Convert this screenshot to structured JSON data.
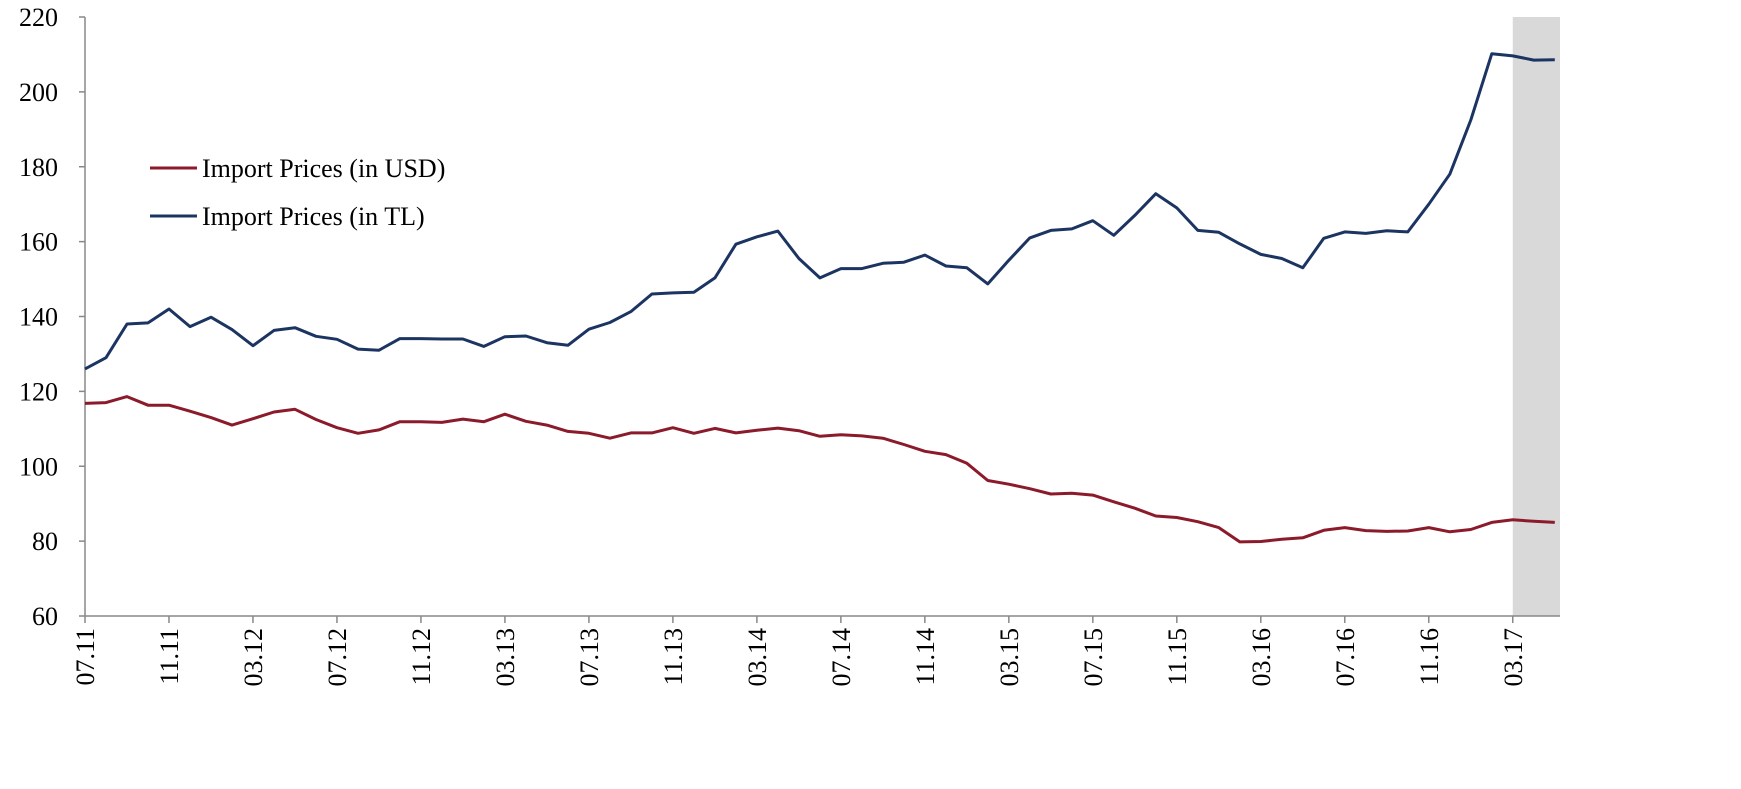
{
  "chart_data": {
    "type": "line",
    "categories": [
      "07.11",
      null,
      null,
      null,
      "11.11",
      null,
      null,
      null,
      "03.12",
      null,
      null,
      null,
      "07.12",
      null,
      null,
      null,
      "11.12",
      null,
      null,
      null,
      "03.13",
      null,
      null,
      null,
      "07.13",
      null,
      null,
      null,
      "11.13",
      null,
      null,
      null,
      "03.14",
      null,
      null,
      null,
      "07.14",
      null,
      null,
      null,
      "11.14",
      null,
      null,
      null,
      "03.15",
      null,
      null,
      null,
      "07.15",
      null,
      null,
      null,
      "11.15",
      null,
      null,
      null,
      "03.16",
      null,
      null,
      null,
      "07.16",
      null,
      null,
      null,
      "11.16",
      null,
      null,
      null,
      "03.17",
      null,
      null
    ],
    "series": [
      {
        "name": "Import Prices (in USD)",
        "color": "#8b1a2b",
        "values": [
          116.8,
          117,
          118.6,
          116.3,
          116.3,
          114.7,
          113,
          111,
          112.7,
          114.5,
          115.2,
          112.5,
          110.3,
          108.8,
          109.7,
          111.9,
          111.9,
          111.7,
          112.6,
          111.9,
          113.9,
          112,
          111,
          109.3,
          108.8,
          107.5,
          108.9,
          108.9,
          110.3,
          108.8,
          110.1,
          108.9,
          109.6,
          110.2,
          109.5,
          108,
          108.4,
          108.1,
          107.5,
          105.8,
          104,
          103.1,
          100.8,
          96.2,
          95.2,
          94,
          92.6,
          92.8,
          92.3,
          90.5,
          88.8,
          86.7,
          86.3,
          85.2,
          83.6,
          79.8,
          79.9,
          80.5,
          80.9,
          82.9,
          83.6,
          82.8,
          82.6,
          82.7,
          83.6,
          82.5,
          83.1,
          85,
          85.7,
          85.3,
          85
        ]
      },
      {
        "name": "Import Prices (in TL)",
        "color": "#1c3461",
        "values": [
          126,
          129,
          138,
          138.3,
          142,
          137.3,
          139.8,
          136.5,
          132.2,
          136.3,
          137,
          134.7,
          133.9,
          131.3,
          131,
          134.1,
          134.1,
          134,
          134,
          132,
          134.6,
          134.8,
          133,
          132.3,
          136.6,
          138.4,
          141.3,
          146,
          146.3,
          146.5,
          150.3,
          159.3,
          161.3,
          162.8,
          155.5,
          150.3,
          152.8,
          152.8,
          154.2,
          154.5,
          156.4,
          153.5,
          153,
          148.7,
          155,
          161,
          163,
          163.4,
          165.6,
          161.7,
          167,
          172.8,
          169,
          163,
          162.5,
          159.4,
          156.6,
          155.5,
          153,
          160.9,
          162.6,
          162.2,
          162.9,
          162.6,
          170,
          178,
          192.5,
          210.2,
          209.6,
          208.5,
          208.6
        ]
      }
    ],
    "ylim": [
      60,
      220
    ],
    "yticks": [
      60,
      80,
      100,
      120,
      140,
      160,
      180,
      200,
      220
    ],
    "grid": false,
    "legend": "upper-left",
    "shade_start": "03.17",
    "shade_color": "#d9d9d9"
  }
}
